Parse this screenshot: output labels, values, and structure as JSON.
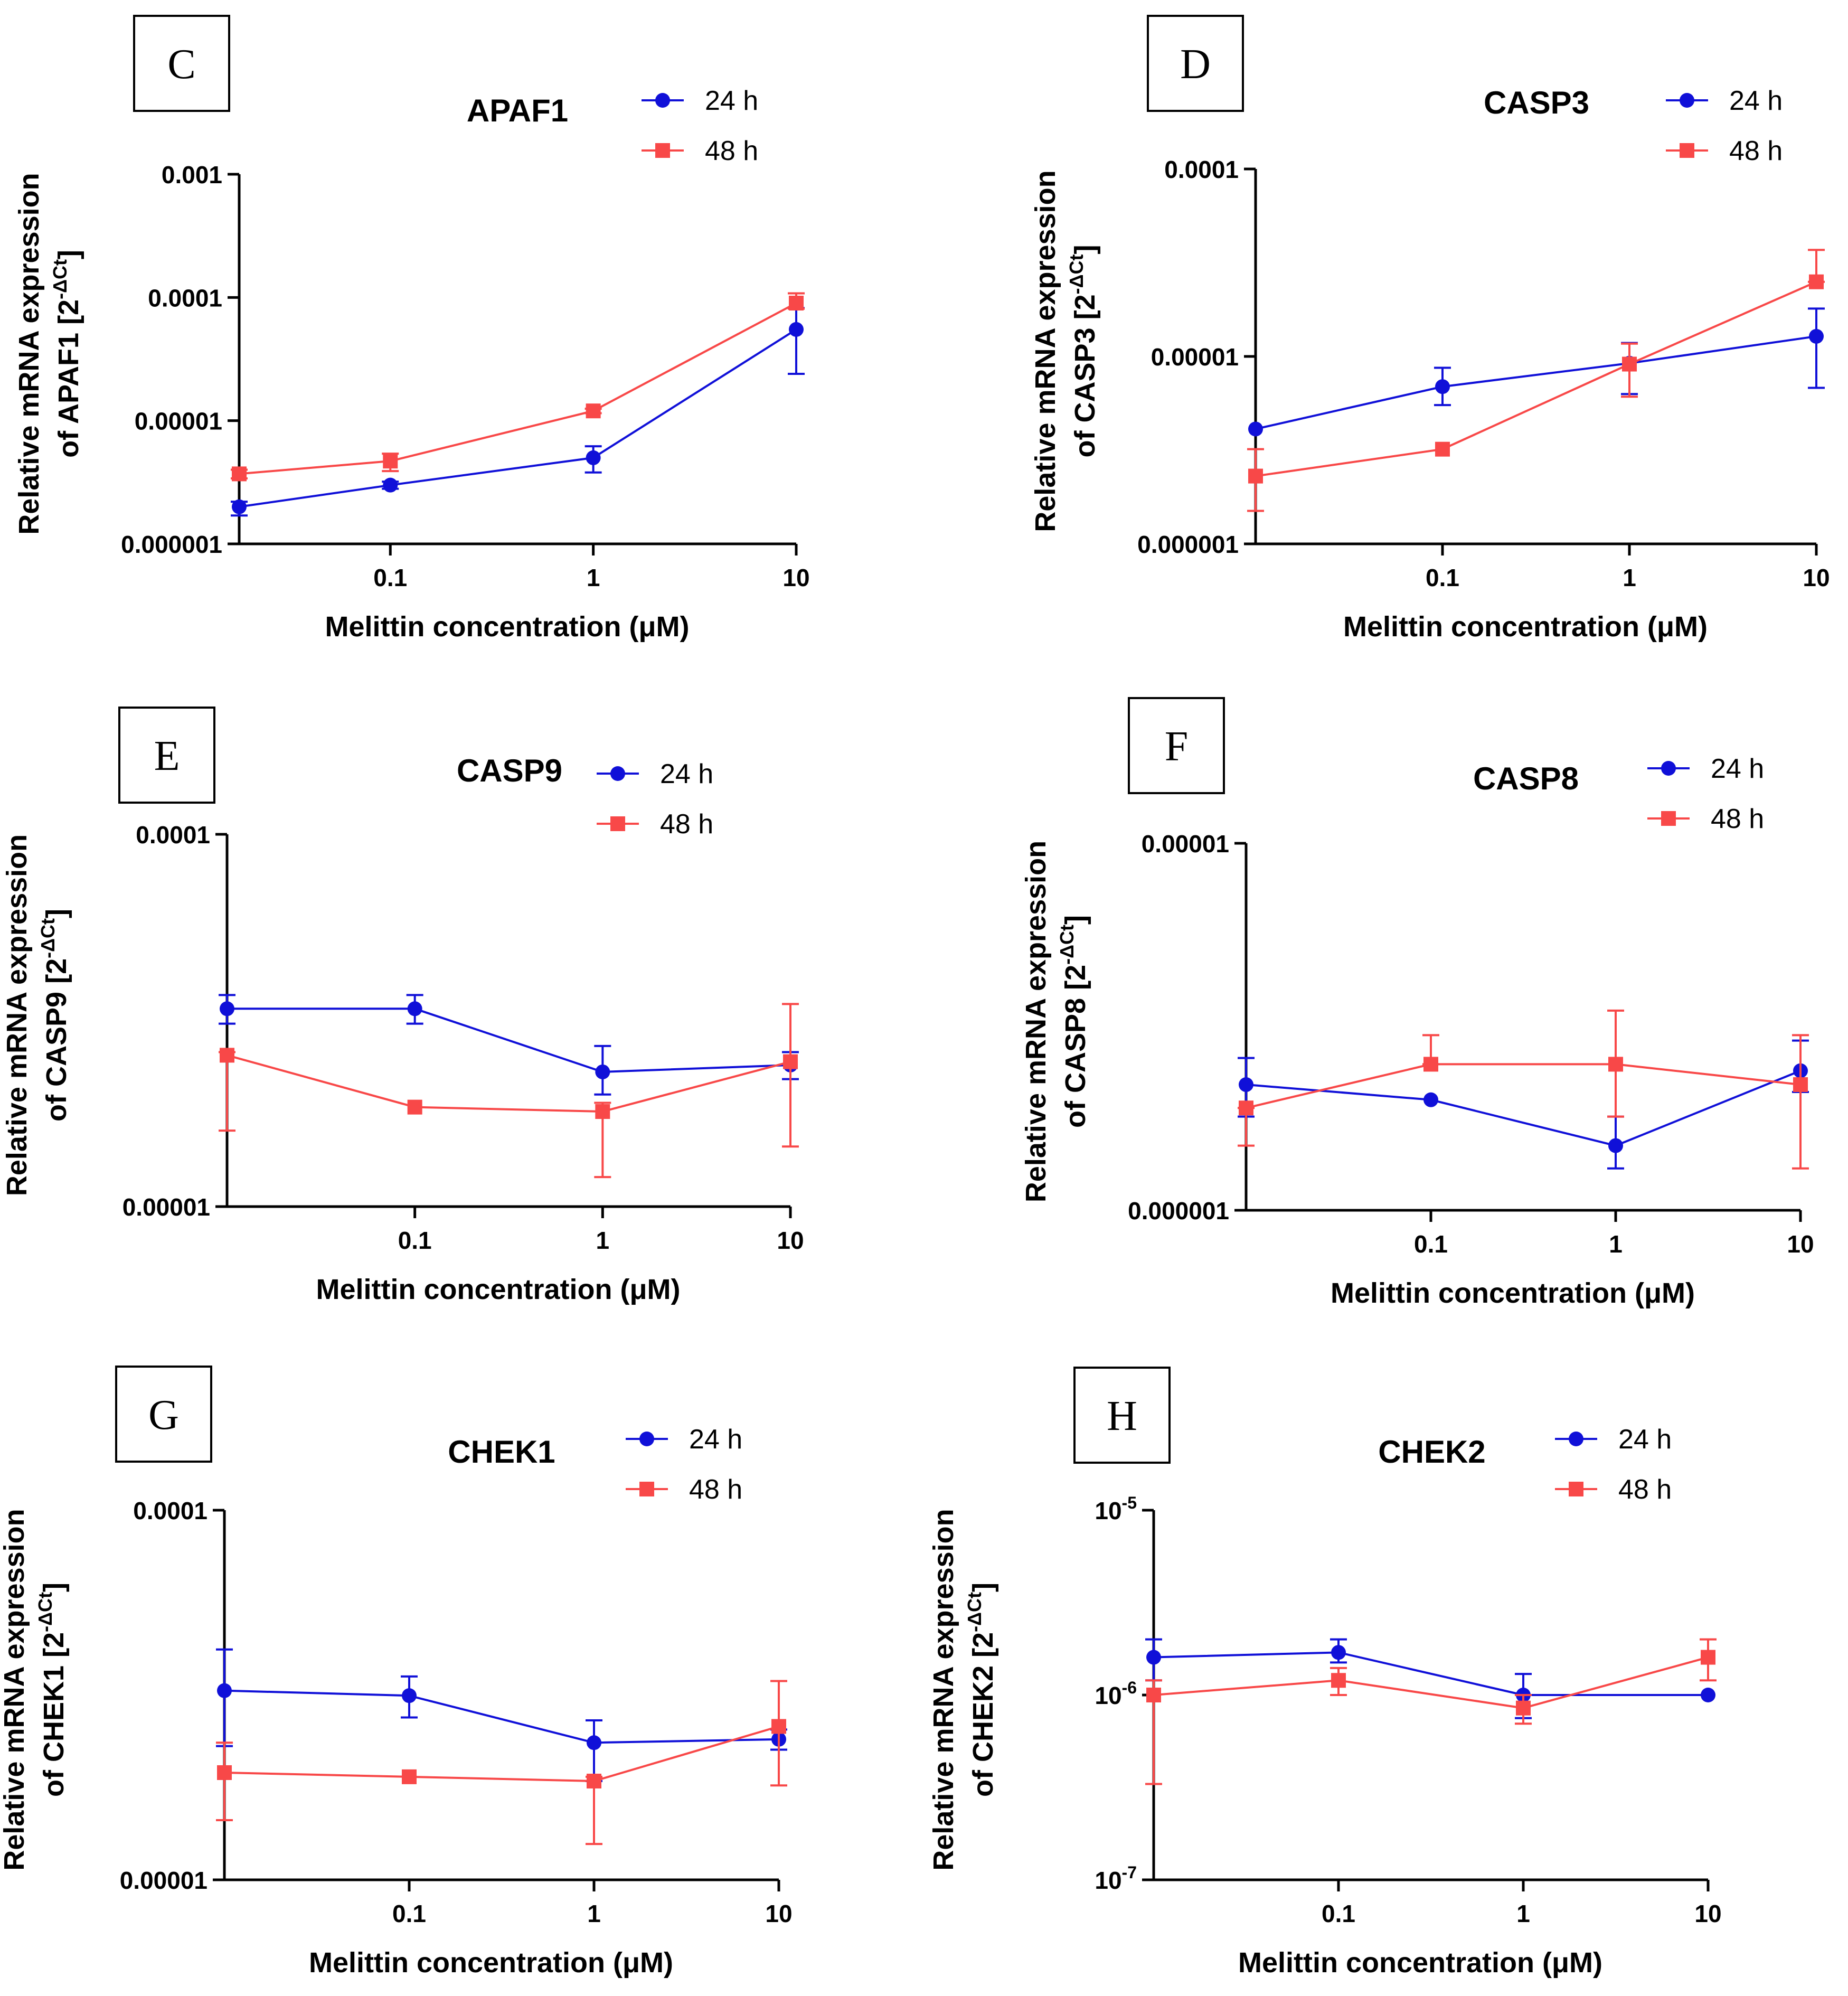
{
  "colors": {
    "series_24h": "#1010d8",
    "series_48h": "#f84848",
    "axis": "#000000"
  },
  "chart_data": [
    {
      "panel": "C",
      "type": "line",
      "title": "APAF1",
      "xlabel": "Melittin concentration (μM)",
      "ylabel_line1": "Relative mRNA expression",
      "ylabel_line2": "of APAF1 [2",
      "ylabel_sup": "-ΔCt",
      "ylabel_close": "]",
      "x_scale": "log",
      "xlim": [
        0.018,
        10
      ],
      "x_ticks": [
        0.1,
        1,
        10
      ],
      "x_tick_labels": [
        "0.1",
        "1",
        "10"
      ],
      "y_scale": "log",
      "ylim": [
        1e-06,
        0.001
      ],
      "y_ticks": [
        1e-06,
        1e-05,
        0.0001,
        0.001
      ],
      "y_tick_labels": [
        "0.000001",
        "0.00001",
        "0.0001",
        "0.001"
      ],
      "legend_position": "top-right",
      "series": [
        {
          "name": "24 h",
          "marker": "circle",
          "x": [
            0.018,
            0.1,
            1,
            10
          ],
          "values": [
            2e-06,
            3e-06,
            5e-06,
            5.5e-05
          ],
          "err_low": [
            1.7e-06,
            2.8e-06,
            3.8e-06,
            2.4e-05
          ],
          "err_high": [
            2.2e-06,
            3.2e-06,
            6.2e-06,
            8.2e-05
          ]
        },
        {
          "name": "48 h",
          "marker": "square",
          "x": [
            0.018,
            0.1,
            1,
            10
          ],
          "values": [
            3.7e-06,
            4.7e-06,
            1.2e-05,
            9e-05
          ],
          "err_low": [
            3.4e-06,
            3.9e-06,
            1.15e-05,
            8.1e-05
          ],
          "err_high": [
            4e-06,
            5.4e-06,
            1.25e-05,
            0.000108
          ]
        }
      ]
    },
    {
      "panel": "D",
      "type": "line",
      "title": "CASP3",
      "xlabel": "Melittin concentration (μM)",
      "ylabel_line1": "Relative mRNA expression",
      "ylabel_line2": "of CASP3 [2",
      "ylabel_sup": "-ΔCt",
      "ylabel_close": "]",
      "x_scale": "log",
      "xlim": [
        0.01,
        10
      ],
      "x_ticks": [
        0.1,
        1,
        10
      ],
      "x_tick_labels": [
        "0.1",
        "1",
        "10"
      ],
      "y_scale": "log",
      "ylim": [
        1e-06,
        0.0001
      ],
      "y_ticks": [
        1e-06,
        1e-05,
        0.0001
      ],
      "y_tick_labels": [
        "0.000001",
        "0.00001",
        "0.0001"
      ],
      "legend_position": "top-right",
      "series": [
        {
          "name": "24 h",
          "marker": "circle",
          "x": [
            0.01,
            0.1,
            1,
            10
          ],
          "values": [
            4.1e-06,
            6.9e-06,
            9.2e-06,
            1.28e-05
          ],
          "err_low": [
            4.1e-06,
            5.5e-06,
            6.3e-06,
            6.8e-06
          ],
          "err_high": [
            4.1e-06,
            8.7e-06,
            1.18e-05,
            1.8e-05
          ]
        },
        {
          "name": "48 h",
          "marker": "square",
          "x": [
            0.01,
            0.1,
            1,
            10
          ],
          "values": [
            2.3e-06,
            3.2e-06,
            9.1e-06,
            2.5e-05
          ],
          "err_low": [
            1.5e-06,
            3.2e-06,
            6.1e-06,
            2.5e-05
          ],
          "err_high": [
            3.2e-06,
            3.2e-06,
            1.17e-05,
            3.7e-05
          ]
        }
      ]
    },
    {
      "panel": "E",
      "type": "line",
      "title": "CASP9",
      "xlabel": "Melittin concentration (μM)",
      "ylabel_line1": "Relative mRNA expression",
      "ylabel_line2": "of CASP9 [2",
      "ylabel_sup": "-ΔCt",
      "ylabel_close": "]",
      "x_scale": "log",
      "xlim": [
        0.01,
        10
      ],
      "x_ticks": [
        0.1,
        1,
        10
      ],
      "x_tick_labels": [
        "0.1",
        "1",
        "10"
      ],
      "y_scale": "log",
      "ylim": [
        1e-05,
        0.0001
      ],
      "y_ticks": [
        1e-05,
        0.0001
      ],
      "y_tick_labels": [
        "0.00001",
        "0.0001"
      ],
      "legend_position": "top-right",
      "series": [
        {
          "name": "24 h",
          "marker": "circle",
          "x": [
            0.01,
            0.1,
            1,
            10
          ],
          "values": [
            3.4e-05,
            3.4e-05,
            2.3e-05,
            2.4e-05
          ],
          "err_low": [
            3.1e-05,
            3.1e-05,
            2e-05,
            2.2e-05
          ],
          "err_high": [
            3.7e-05,
            3.7e-05,
            2.7e-05,
            2.6e-05
          ]
        },
        {
          "name": "48 h",
          "marker": "square",
          "x": [
            0.01,
            0.1,
            1,
            10
          ],
          "values": [
            2.55e-05,
            1.85e-05,
            1.8e-05,
            2.45e-05
          ],
          "err_low": [
            1.6e-05,
            1.85e-05,
            1.2e-05,
            1.45e-05
          ],
          "err_high": [
            2.6e-05,
            1.85e-05,
            1.9e-05,
            3.5e-05
          ]
        }
      ]
    },
    {
      "panel": "F",
      "type": "line",
      "title": "CASP8",
      "xlabel": "Melittin concentration (μM)",
      "ylabel_line1": "Relative mRNA expression",
      "ylabel_line2": "of CASP8 [2",
      "ylabel_sup": "-ΔCt",
      "ylabel_close": "]",
      "x_scale": "log",
      "xlim": [
        0.01,
        10
      ],
      "x_ticks": [
        0.1,
        1,
        10
      ],
      "x_tick_labels": [
        "0.1",
        "1",
        "10"
      ],
      "y_scale": "log",
      "ylim": [
        1e-06,
        1e-05
      ],
      "y_ticks": [
        1e-06,
        1e-05
      ],
      "y_tick_labels": [
        "0.000001",
        "0.00001"
      ],
      "legend_position": "top-right",
      "series": [
        {
          "name": "24 h",
          "marker": "circle",
          "x": [
            0.01,
            0.1,
            1,
            10
          ],
          "values": [
            2.2e-06,
            2e-06,
            1.5e-06,
            2.4e-06
          ],
          "err_low": [
            1.8e-06,
            2e-06,
            1.3e-06,
            2.1e-06
          ],
          "err_high": [
            2.6e-06,
            2e-06,
            1.8e-06,
            2.9e-06
          ]
        },
        {
          "name": "48 h",
          "marker": "square",
          "x": [
            0.01,
            0.1,
            1,
            10
          ],
          "values": [
            1.9e-06,
            2.5e-06,
            2.5e-06,
            2.2e-06
          ],
          "err_low": [
            1.5e-06,
            2.5e-06,
            1.8e-06,
            1.3e-06
          ],
          "err_high": [
            1.9e-06,
            3e-06,
            3.5e-06,
            3e-06
          ]
        }
      ]
    },
    {
      "panel": "G",
      "type": "line",
      "title": "CHEK1",
      "xlabel": "Melittin concentration (μM)",
      "ylabel_line1": "Relative mRNA expression",
      "ylabel_line2": "of CHEK1 [2",
      "ylabel_sup": "-ΔCt",
      "ylabel_close": "]",
      "x_scale": "log",
      "xlim": [
        0.01,
        10
      ],
      "x_ticks": [
        0.1,
        1,
        10
      ],
      "x_tick_labels": [
        "0.1",
        "1",
        "10"
      ],
      "y_scale": "log",
      "ylim": [
        1e-05,
        0.0001
      ],
      "y_ticks": [
        1e-05,
        0.0001
      ],
      "y_tick_labels": [
        "0.00001",
        "0.0001"
      ],
      "legend_position": "top-right",
      "series": [
        {
          "name": "24 h",
          "marker": "circle",
          "x": [
            0.01,
            0.1,
            1,
            10
          ],
          "values": [
            3.25e-05,
            3.15e-05,
            2.35e-05,
            2.4e-05
          ],
          "err_low": [
            2.3e-05,
            2.75e-05,
            1.85e-05,
            2.25e-05
          ],
          "err_high": [
            4.2e-05,
            3.55e-05,
            2.7e-05,
            2.55e-05
          ]
        },
        {
          "name": "48 h",
          "marker": "square",
          "x": [
            0.01,
            0.1,
            1,
            10
          ],
          "values": [
            1.95e-05,
            1.9e-05,
            1.85e-05,
            2.6e-05
          ],
          "err_low": [
            1.45e-05,
            1.9e-05,
            1.25e-05,
            1.8e-05
          ],
          "err_high": [
            2.35e-05,
            1.9e-05,
            1.9e-05,
            3.45e-05
          ]
        }
      ]
    },
    {
      "panel": "H",
      "type": "line",
      "title": "CHEK2",
      "xlabel": "Melittin concentration (μM)",
      "ylabel_line1": "Relative mRNA expression",
      "ylabel_line2": "of CHEK2 [2",
      "ylabel_sup": "-ΔCt",
      "ylabel_close": "]",
      "x_scale": "log",
      "xlim": [
        0.01,
        10
      ],
      "x_ticks": [
        0.1,
        1,
        10
      ],
      "x_tick_labels": [
        "0.1",
        "1",
        "10"
      ],
      "y_scale": "log",
      "ylim": [
        1e-07,
        1e-05
      ],
      "y_ticks": [
        1e-07,
        1e-06,
        1e-05
      ],
      "y_tick_base": "10",
      "y_tick_exponents": [
        "-7",
        "-6",
        "-5"
      ],
      "legend_position": "top-right",
      "series": [
        {
          "name": "24 h",
          "marker": "circle",
          "x": [
            0.01,
            0.1,
            1,
            10
          ],
          "values": [
            1.6e-06,
            1.7e-06,
            1e-06,
            1e-06
          ],
          "err_low": [
            1.2e-06,
            1.5e-06,
            7.5e-07,
            1e-06
          ],
          "err_high": [
            2e-06,
            2e-06,
            1.3e-06,
            1e-06
          ]
        },
        {
          "name": "48 h",
          "marker": "square",
          "x": [
            0.01,
            0.1,
            1,
            10
          ],
          "values": [
            1e-06,
            1.2e-06,
            8.5e-07,
            1.6e-06
          ],
          "err_low": [
            3.3e-07,
            1e-06,
            7e-07,
            1.2e-06
          ],
          "err_high": [
            1.2e-06,
            1.4e-06,
            1e-06,
            2e-06
          ]
        }
      ]
    }
  ]
}
